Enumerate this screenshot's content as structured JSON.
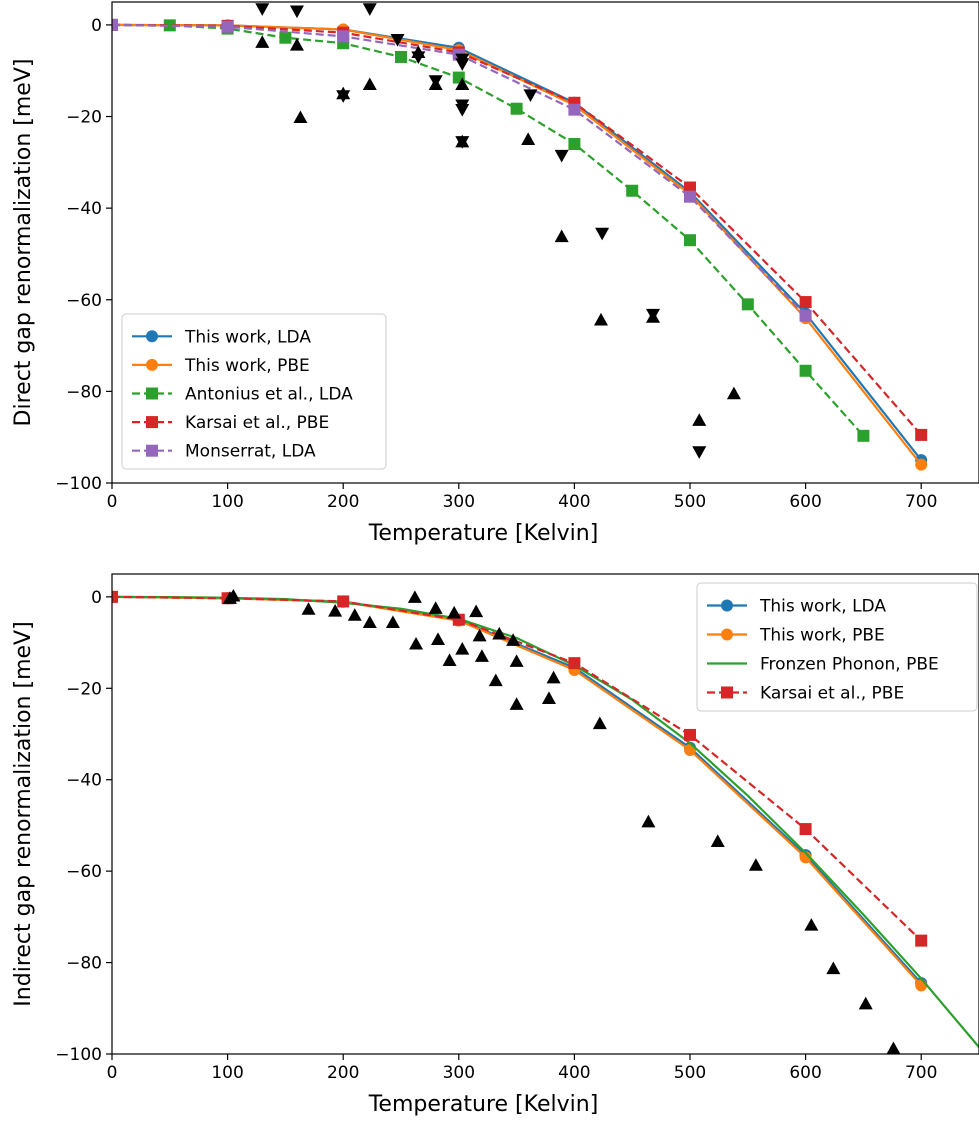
{
  "chart_data": [
    {
      "type": "line",
      "xlabel": "Temperature [Kelvin]",
      "ylabel": "Direct gap renormalization [meV]",
      "xlim": [
        0,
        750
      ],
      "ylim": [
        -100,
        5
      ],
      "xticks": [
        0,
        100,
        200,
        300,
        400,
        500,
        600,
        700
      ],
      "yticks": [
        0,
        -20,
        -40,
        -60,
        -80,
        -100
      ],
      "xtick_labels": [
        "0",
        "100",
        "200",
        "300",
        "400",
        "500",
        "600",
        "700"
      ],
      "ytick_labels": [
        "0",
        "−20",
        "−40",
        "−60",
        "−80",
        "−100"
      ],
      "legend_position": "lower-left",
      "series": [
        {
          "name": "This work, LDA",
          "color": "#1f77b4",
          "marker": "circle",
          "linestyle": "solid",
          "x": [
            0,
            100,
            200,
            300,
            400,
            500,
            600,
            700
          ],
          "y": [
            0,
            -0.1,
            -1.0,
            -5.0,
            -17.0,
            -36.5,
            -63.0,
            -95.0
          ]
        },
        {
          "name": "This work, PBE",
          "color": "#ff7f0e",
          "marker": "circle",
          "linestyle": "solid",
          "x": [
            0,
            100,
            200,
            300,
            400,
            500,
            600,
            700
          ],
          "y": [
            0,
            -0.1,
            -1.0,
            -5.5,
            -17.5,
            -37.0,
            -64.0,
            -96.0
          ]
        },
        {
          "name": "Antonius et al., LDA",
          "color": "#2ca02c",
          "marker": "square",
          "linestyle": "dashed",
          "x": [
            0,
            50,
            100,
            150,
            200,
            250,
            300,
            350,
            400,
            450,
            500,
            550,
            600,
            650
          ],
          "y": [
            0,
            -0.1,
            -0.8,
            -2.8,
            -4.0,
            -7.0,
            -11.5,
            -18.3,
            -26.0,
            -36.2,
            -47.0,
            -61.0,
            -75.5,
            -89.7
          ]
        },
        {
          "name": "Karsai et al., PBE",
          "color": "#d62728",
          "marker": "square",
          "linestyle": "dashed",
          "x": [
            0,
            100,
            200,
            300,
            400,
            500,
            600,
            700
          ],
          "y": [
            0,
            -0.2,
            -1.7,
            -6.0,
            -17.0,
            -35.5,
            -60.5,
            -89.5
          ]
        },
        {
          "name": "Monserrat, LDA",
          "color": "#9467bd",
          "marker": "square",
          "linestyle": "dashed",
          "x": [
            0,
            100,
            200,
            300,
            400,
            500,
            600
          ],
          "y": [
            0,
            -0.4,
            -2.5,
            -6.5,
            -18.5,
            -37.5,
            -63.5
          ]
        }
      ],
      "experimental_up": [
        [
          130,
          -3.8
        ],
        [
          160,
          -4.4
        ],
        [
          163,
          -20.2
        ],
        [
          200,
          -15.0
        ],
        [
          223,
          -13.0
        ],
        [
          265,
          -6.0
        ],
        [
          280,
          -13.0
        ],
        [
          303,
          -13.0
        ],
        [
          303,
          -25.5
        ],
        [
          360,
          -25.0
        ],
        [
          389,
          -46.2
        ],
        [
          423,
          -64.4
        ],
        [
          468,
          -63.8
        ],
        [
          508,
          -86.3
        ],
        [
          538,
          -80.5
        ]
      ],
      "experimental_down": [
        [
          130,
          3.5
        ],
        [
          160,
          3.0
        ],
        [
          223,
          3.5
        ],
        [
          200,
          -15.5
        ],
        [
          247,
          -3.2
        ],
        [
          265,
          -7.0
        ],
        [
          280,
          -12.2
        ],
        [
          303,
          -7.5
        ],
        [
          303,
          -8.5
        ],
        [
          303,
          -17.5
        ],
        [
          303,
          -18.5
        ],
        [
          303,
          -25.5
        ],
        [
          362,
          -15.3
        ],
        [
          389,
          -28.5
        ],
        [
          424,
          -45.5
        ],
        [
          468,
          -63.2
        ],
        [
          508,
          -93.2
        ]
      ]
    },
    {
      "type": "line",
      "xlabel": "Temperature [Kelvin]",
      "ylabel": "Indirect gap renormalization [meV]",
      "xlim": [
        0,
        750
      ],
      "ylim": [
        -100,
        5
      ],
      "xticks": [
        0,
        100,
        200,
        300,
        400,
        500,
        600,
        700
      ],
      "yticks": [
        0,
        -20,
        -40,
        -60,
        -80,
        -100
      ],
      "xtick_labels": [
        "0",
        "100",
        "200",
        "300",
        "400",
        "500",
        "600",
        "700"
      ],
      "ytick_labels": [
        "0",
        "−20",
        "−40",
        "−60",
        "−80",
        "−100"
      ],
      "legend_position": "top-right",
      "series": [
        {
          "name": "This work, LDA",
          "color": "#1f77b4",
          "marker": "circle",
          "linestyle": "solid",
          "x": [
            0,
            100,
            200,
            300,
            400,
            500,
            600,
            700
          ],
          "y": [
            0,
            -0.3,
            -1.0,
            -5.0,
            -15.5,
            -33.0,
            -56.5,
            -84.5
          ]
        },
        {
          "name": "This work, PBE",
          "color": "#ff7f0e",
          "marker": "circle",
          "linestyle": "solid",
          "x": [
            0,
            100,
            200,
            300,
            400,
            500,
            600,
            700
          ],
          "y": [
            0,
            -0.3,
            -1.1,
            -5.2,
            -16.0,
            -33.5,
            -57.0,
            -85.0
          ]
        },
        {
          "name": "Fronzen Phonon, PBE",
          "color": "#2ca02c",
          "marker": "none",
          "linestyle": "solid",
          "x": [
            0,
            50,
            100,
            150,
            200,
            250,
            300,
            350,
            400,
            450,
            500,
            550,
            600,
            650,
            700,
            750
          ],
          "y": [
            0,
            -0.05,
            -0.2,
            -0.5,
            -1.3,
            -2.6,
            -4.8,
            -9.0,
            -15.0,
            -22.5,
            -32.0,
            -43.5,
            -56.0,
            -69.5,
            -83.5,
            -98.5
          ]
        },
        {
          "name": "Karsai et al., PBE",
          "color": "#d62728",
          "marker": "square",
          "linestyle": "dashed",
          "x": [
            0,
            100,
            200,
            300,
            400,
            500,
            600,
            700
          ],
          "y": [
            0,
            -0.3,
            -1.0,
            -5.0,
            -14.5,
            -30.2,
            -50.8,
            -75.2
          ]
        }
      ],
      "experimental_up": [
        [
          102,
          -0.3
        ],
        [
          105,
          0.2
        ],
        [
          170,
          -2.7
        ],
        [
          193,
          -3.1
        ],
        [
          210,
          -4.0
        ],
        [
          223,
          -5.6
        ],
        [
          243,
          -5.6
        ],
        [
          262,
          -0.1
        ],
        [
          263,
          -10.3
        ],
        [
          280,
          -2.5
        ],
        [
          282,
          -9.3
        ],
        [
          292,
          -13.9
        ],
        [
          296,
          -3.5
        ],
        [
          303,
          -11.4
        ],
        [
          315,
          -3.2
        ],
        [
          318,
          -8.5
        ],
        [
          320,
          -13.0
        ],
        [
          332,
          -18.3
        ],
        [
          335,
          -8.1
        ],
        [
          347,
          -9.5
        ],
        [
          350,
          -14.1
        ],
        [
          350,
          -23.5
        ],
        [
          378,
          -22.2
        ],
        [
          382,
          -17.7
        ],
        [
          422,
          -27.7
        ],
        [
          464,
          -49.2
        ],
        [
          524,
          -53.5
        ],
        [
          557,
          -58.7
        ],
        [
          605,
          -71.8
        ],
        [
          624,
          -81.3
        ],
        [
          652,
          -89.0
        ],
        [
          676,
          -98.8
        ]
      ]
    }
  ]
}
